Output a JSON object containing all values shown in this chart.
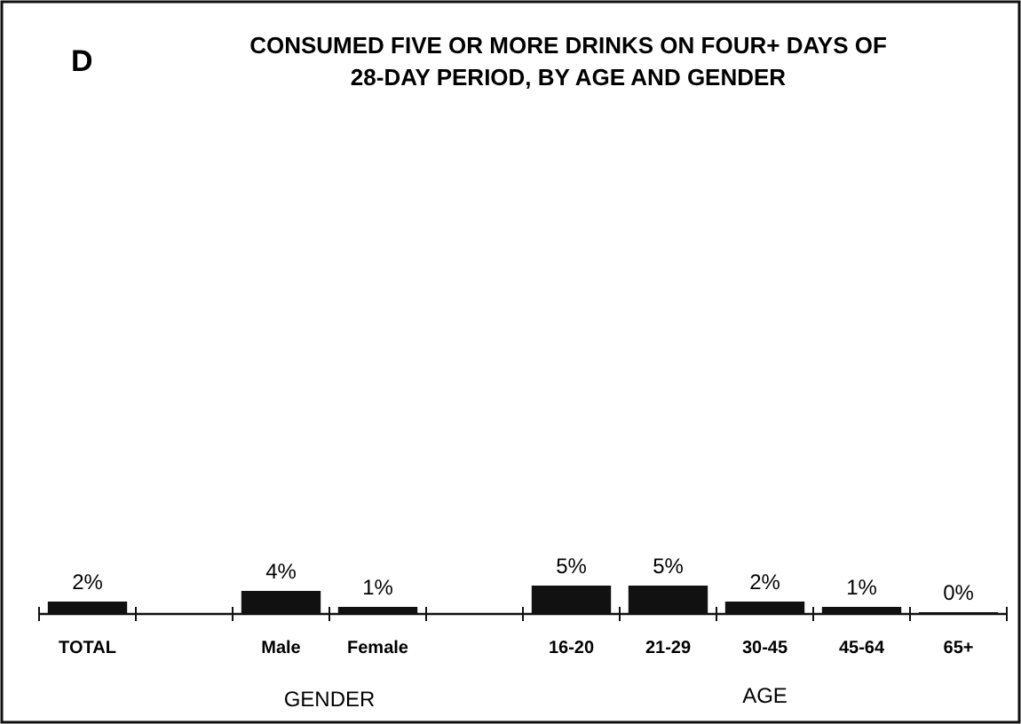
{
  "chart_data": {
    "type": "bar",
    "title": "CONSUMED FIVE OR MORE DRINKS ON FOUR+ DAYS OF 28-DAY PERIOD, BY AGE AND GENDER",
    "categories": [
      "TOTAL",
      null,
      "Male",
      "Female",
      null,
      "16-20",
      "21-29",
      "30-45",
      "45-64",
      "65+"
    ],
    "values": [
      2,
      null,
      4,
      1,
      null,
      5,
      5,
      2,
      1,
      0
    ],
    "color": "#111111",
    "value_labels": [
      "2%",
      null,
      "4%",
      "1%",
      null,
      "5%",
      "5%",
      "2%",
      "1%",
      "0%"
    ],
    "tick_labels": "x",
    "annotations": [
      "D",
      "GENDER",
      "AGE"
    ]
  }
}
